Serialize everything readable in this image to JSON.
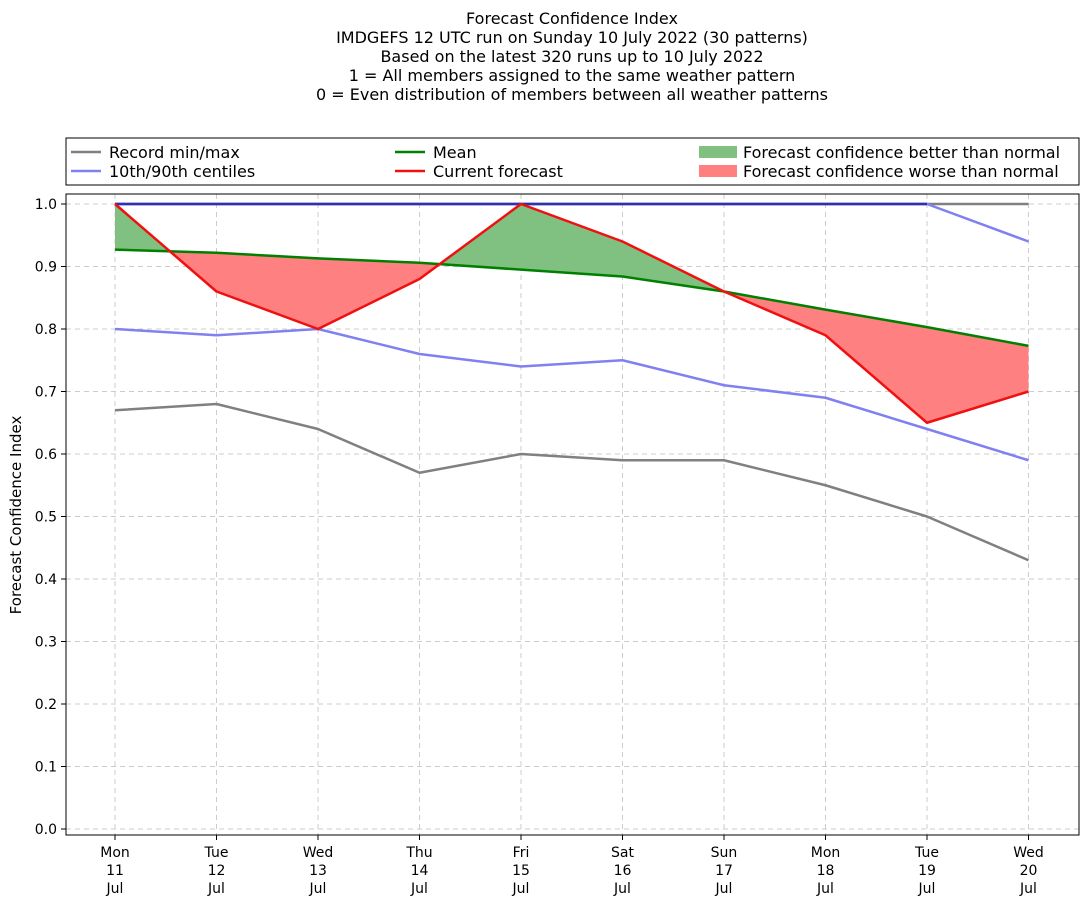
{
  "title_lines": [
    "Forecast Confidence Index",
    "IMDGEFS 12 UTC run on Sunday 10 July 2022 (30 patterns)",
    "Based on the latest 320 runs up to 10 July 2022",
    "1 = All members assigned to the same weather pattern",
    "0 = Even distribution of members between all weather patterns"
  ],
  "legend": {
    "record": "Record min/max",
    "centiles": "10th/90th centiles",
    "mean": "Mean",
    "current": "Current forecast",
    "better": "Forecast confidence better than normal",
    "worse": "Forecast confidence worse than normal"
  },
  "colors": {
    "record": "#808080",
    "centiles": "#8080f0",
    "mean": "#008000",
    "current": "#f01010",
    "better": "#80c080",
    "worse": "#ff8080",
    "overlap": "#3030b0"
  },
  "chart_data": {
    "type": "line",
    "ylabel": "Forecast Confidence Index",
    "ylim": [
      0,
      1
    ],
    "yticks": [
      "0.0",
      "0.1",
      "0.2",
      "0.3",
      "0.4",
      "0.5",
      "0.6",
      "0.7",
      "0.8",
      "0.9",
      "1.0"
    ],
    "categories": [
      [
        "Mon",
        "11",
        "Jul"
      ],
      [
        "Tue",
        "12",
        "Jul"
      ],
      [
        "Wed",
        "13",
        "Jul"
      ],
      [
        "Thu",
        "14",
        "Jul"
      ],
      [
        "Fri",
        "15",
        "Jul"
      ],
      [
        "Sat",
        "16",
        "Jul"
      ],
      [
        "Sun",
        "17",
        "Jul"
      ],
      [
        "Mon",
        "18",
        "Jul"
      ],
      [
        "Tue",
        "19",
        "Jul"
      ],
      [
        "Wed",
        "20",
        "Jul"
      ]
    ],
    "grid": true,
    "legend_position": "top",
    "series": [
      {
        "key": "record_max",
        "values": [
          1,
          1,
          1,
          1,
          1,
          1,
          1,
          1,
          1,
          1
        ]
      },
      {
        "key": "record_min",
        "values": [
          0.67,
          0.68,
          0.64,
          0.57,
          0.6,
          0.59,
          0.59,
          0.55,
          0.5,
          0.43
        ]
      },
      {
        "key": "p90",
        "values": [
          1,
          1,
          1,
          1,
          1,
          1,
          1,
          1,
          1,
          0.94
        ]
      },
      {
        "key": "p10",
        "values": [
          0.8,
          0.79,
          0.8,
          0.76,
          0.74,
          0.75,
          0.71,
          0.69,
          0.64,
          0.59
        ]
      },
      {
        "key": "mean",
        "values": [
          0.927,
          0.922,
          0.913,
          0.906,
          0.895,
          0.884,
          0.86,
          0.831,
          0.803,
          0.773
        ]
      },
      {
        "key": "current",
        "values": [
          1.0,
          0.86,
          0.8,
          0.88,
          1.0,
          0.94,
          0.86,
          0.79,
          0.65,
          0.7
        ]
      }
    ]
  }
}
